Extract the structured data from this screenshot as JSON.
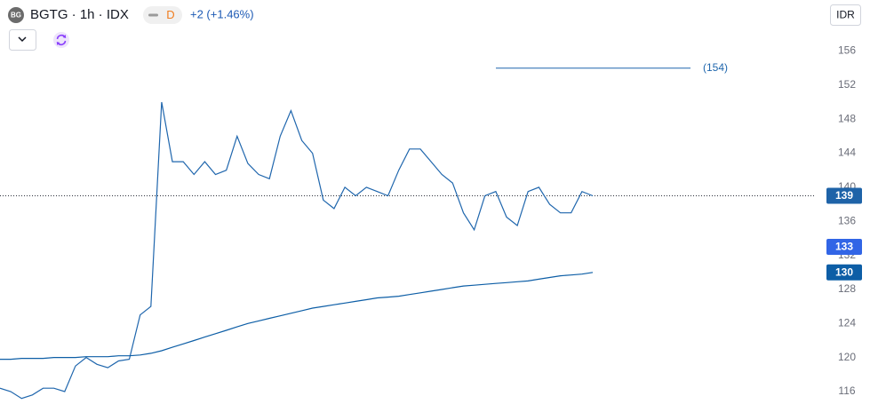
{
  "chart_data": {
    "type": "line",
    "logo": "BG",
    "title": "BGTG · 1h · IDX",
    "badge": "D",
    "change": "+2 (+1.46%)",
    "currency": "IDR",
    "categories": [
      null,
      null,
      null,
      null,
      null,
      null,
      null,
      null,
      null,
      null,
      null,
      null,
      null,
      null,
      null,
      null,
      null,
      null,
      null,
      null,
      null,
      null,
      null,
      null,
      null,
      null,
      null,
      null,
      null,
      null,
      null,
      null,
      null,
      null,
      null,
      null,
      null,
      null,
      null,
      null,
      null,
      null,
      null,
      null,
      null,
      null,
      null,
      null,
      null,
      null,
      null,
      null,
      null,
      null,
      null,
      null
    ],
    "series": [
      {
        "color": "#1f66ad",
        "values": [
          116.4,
          116.0,
          115.2,
          115.6,
          116.4,
          116.4,
          116.0,
          119.0,
          120.0,
          119.2,
          118.8,
          119.6,
          119.8,
          125.0,
          126.0,
          150.0,
          143.0,
          143.0,
          141.5,
          143.0,
          141.5,
          142.0,
          146.0,
          142.8,
          141.5,
          141.0,
          146.0,
          149.0,
          145.5,
          144.0,
          138.5,
          137.5,
          140.0,
          139.0,
          140.0,
          139.5,
          139.0,
          142.0,
          144.5,
          144.5,
          143.0,
          141.5,
          140.5,
          137.0,
          135.0,
          139.0,
          139.5,
          136.5,
          135.5,
          139.5,
          140.0,
          138.0,
          137.0,
          137.0,
          139.5,
          139.0
        ]
      },
      {
        "color": "#0d5ea6",
        "values": [
          119.8,
          119.8,
          119.9,
          119.9,
          119.9,
          120.0,
          120.0,
          120.0,
          120.1,
          120.1,
          120.1,
          120.2,
          120.2,
          120.3,
          120.5,
          120.8,
          121.2,
          121.6,
          122.0,
          122.4,
          122.8,
          123.2,
          123.6,
          124.0,
          124.3,
          124.6,
          124.9,
          125.2,
          125.5,
          125.8,
          126.0,
          126.2,
          126.4,
          126.6,
          126.8,
          127.0,
          127.1,
          127.2,
          127.4,
          127.6,
          127.8,
          128.0,
          128.2,
          128.4,
          128.5,
          128.6,
          128.7,
          128.8,
          128.9,
          129.0,
          129.2,
          129.4,
          129.6,
          129.7,
          129.8,
          130.0
        ]
      }
    ],
    "ylim": [
      113.6,
      162
    ],
    "yticks": [
      116,
      120,
      124,
      128,
      132,
      136,
      140,
      144,
      148,
      152,
      156
    ],
    "price_labels": [
      {
        "value": 139,
        "color": "#1e63a8"
      },
      {
        "value": 133,
        "color": "#3165e6"
      },
      {
        "value": 130,
        "color": "#0d5ea6"
      }
    ],
    "last_price_line": 139,
    "level_line": {
      "value": 154,
      "label": "(154)",
      "color": "#1f66ad"
    }
  }
}
